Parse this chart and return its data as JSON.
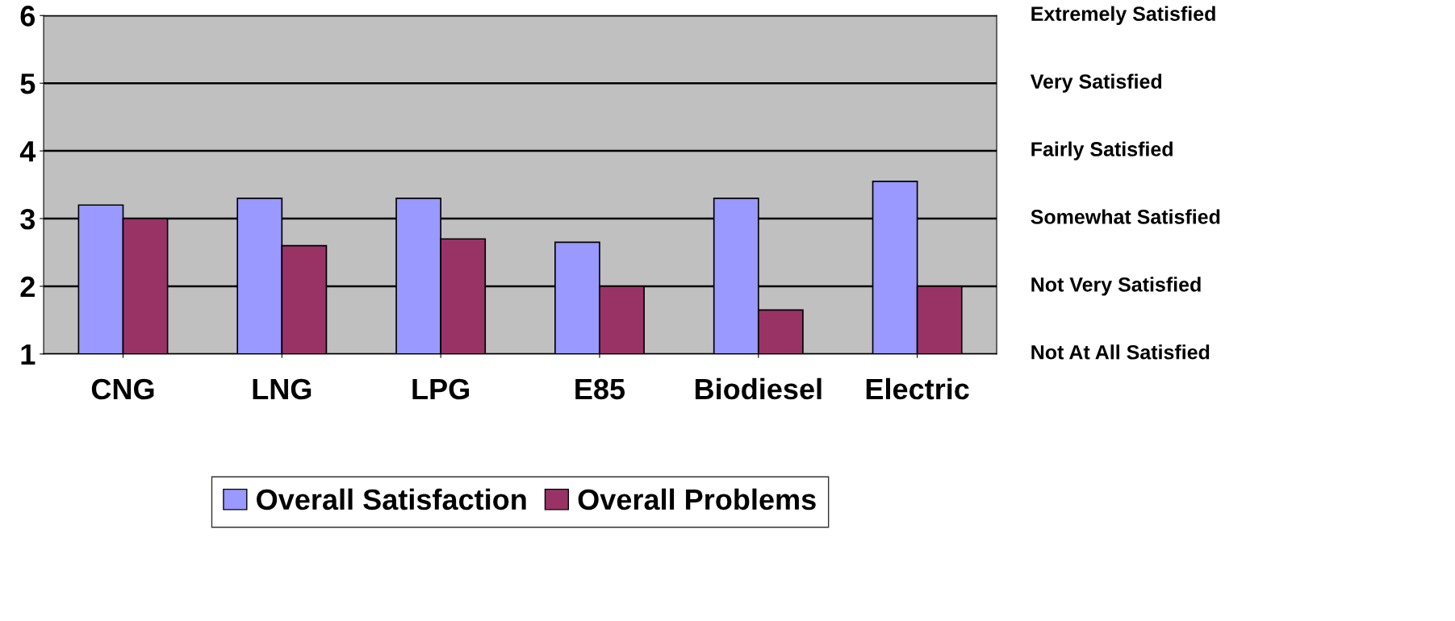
{
  "chart_data": {
    "type": "bar",
    "categories": [
      "CNG",
      "LNG",
      "LPG",
      "E85",
      "Biodiesel",
      "Electric"
    ],
    "series": [
      {
        "name": "Overall Satisfaction",
        "color": "#9999ff",
        "values": [
          3.2,
          3.3,
          3.3,
          2.65,
          3.3,
          3.55
        ]
      },
      {
        "name": "Overall Problems",
        "color": "#993366",
        "values": [
          3.0,
          2.6,
          2.7,
          2.0,
          1.65,
          2.0
        ]
      }
    ],
    "ylim": [
      1,
      6
    ],
    "yticks": [
      1,
      2,
      3,
      4,
      5,
      6
    ],
    "annotations": [
      "Extremely Satisfied",
      "Very Satisfied",
      "Fairly Satisfied",
      "Somewhat Satisfied",
      "Not Very Satisfied",
      "Not At All Satisfied"
    ],
    "grid": "y",
    "legend": "bottom"
  }
}
